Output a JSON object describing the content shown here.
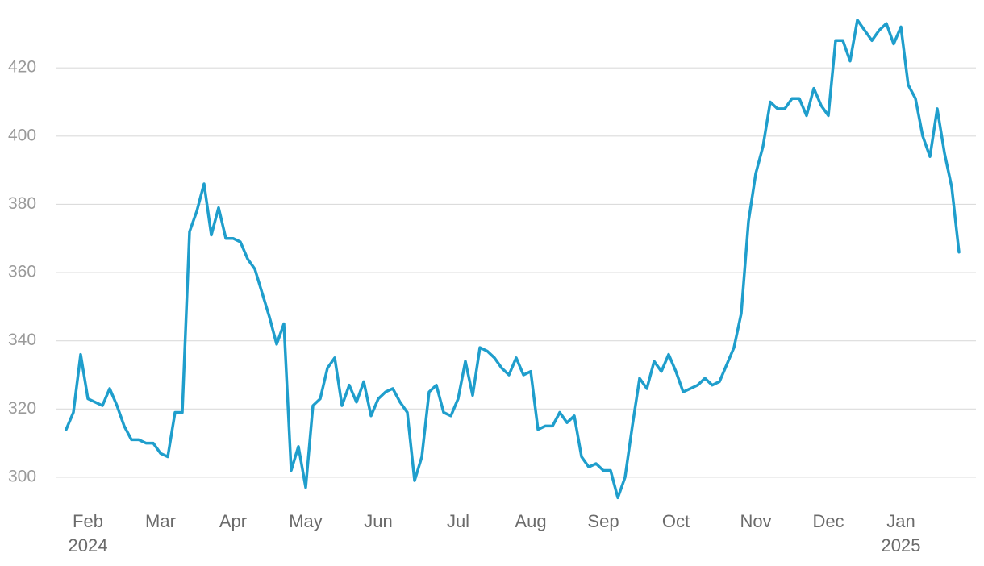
{
  "chart_data": {
    "type": "line",
    "color": "#1f9ecc",
    "grid": true,
    "ylim": [
      291,
      438
    ],
    "yticks": [
      300,
      320,
      340,
      360,
      380,
      400,
      420
    ],
    "categories": [
      null,
      null,
      null,
      "Feb",
      null,
      null,
      null,
      null,
      null,
      null,
      null,
      null,
      null,
      "Mar",
      null,
      null,
      null,
      null,
      null,
      null,
      null,
      null,
      null,
      "Apr",
      null,
      null,
      null,
      null,
      null,
      null,
      null,
      null,
      null,
      "May",
      null,
      null,
      null,
      null,
      null,
      null,
      null,
      null,
      null,
      "Jun",
      null,
      null,
      null,
      null,
      null,
      null,
      null,
      null,
      null,
      null,
      "Jul",
      null,
      null,
      null,
      null,
      null,
      null,
      null,
      null,
      null,
      "Aug",
      null,
      null,
      null,
      null,
      null,
      null,
      null,
      null,
      null,
      "Sep",
      null,
      null,
      null,
      null,
      null,
      null,
      null,
      null,
      null,
      "Oct",
      null,
      null,
      null,
      null,
      null,
      null,
      null,
      null,
      null,
      null,
      "Nov",
      null,
      null,
      null,
      null,
      null,
      null,
      null,
      null,
      null,
      "Dec",
      null,
      null,
      null,
      null,
      null,
      null,
      null,
      null,
      null,
      "Jan",
      null,
      null,
      null,
      null,
      null,
      null,
      null,
      null
    ],
    "category_sublabels": [
      null,
      null,
      null,
      "2024",
      null,
      null,
      null,
      null,
      null,
      null,
      null,
      null,
      null,
      null,
      null,
      null,
      null,
      null,
      null,
      null,
      null,
      null,
      null,
      null,
      null,
      null,
      null,
      null,
      null,
      null,
      null,
      null,
      null,
      null,
      null,
      null,
      null,
      null,
      null,
      null,
      null,
      null,
      null,
      null,
      null,
      null,
      null,
      null,
      null,
      null,
      null,
      null,
      null,
      null,
      null,
      null,
      null,
      null,
      null,
      null,
      null,
      null,
      null,
      null,
      null,
      null,
      null,
      null,
      null,
      null,
      null,
      null,
      null,
      null,
      null,
      null,
      null,
      null,
      null,
      null,
      null,
      null,
      null,
      null,
      null,
      null,
      null,
      null,
      null,
      null,
      null,
      null,
      null,
      null,
      null,
      null,
      null,
      null,
      null,
      null,
      null,
      null,
      null,
      null,
      null,
      null,
      null,
      null,
      null,
      null,
      null,
      null,
      null,
      null,
      null,
      "2025",
      null,
      null,
      null,
      null,
      null,
      null,
      null,
      null
    ],
    "values": [
      314,
      319,
      336,
      323,
      322,
      321,
      326,
      321,
      315,
      311,
      311,
      310,
      310,
      307,
      306,
      319,
      319,
      372,
      378,
      386,
      371,
      379,
      370,
      370,
      369,
      364,
      361,
      354,
      347,
      339,
      345,
      302,
      309,
      297,
      321,
      323,
      332,
      335,
      321,
      327,
      322,
      328,
      318,
      323,
      325,
      326,
      322,
      319,
      299,
      306,
      325,
      327,
      319,
      318,
      323,
      334,
      324,
      338,
      337,
      335,
      332,
      330,
      335,
      330,
      331,
      314,
      315,
      315,
      319,
      316,
      318,
      306,
      303,
      304,
      302,
      302,
      294,
      300,
      315,
      329,
      326,
      334,
      331,
      336,
      331,
      325,
      326,
      327,
      329,
      327,
      328,
      333,
      338,
      348,
      375,
      389,
      397,
      410,
      408,
      408,
      411,
      411,
      406,
      414,
      409,
      406,
      428,
      428,
      422,
      434,
      431,
      428,
      431,
      433,
      427,
      432,
      415,
      411,
      400,
      394,
      408,
      395,
      385,
      366
    ]
  }
}
